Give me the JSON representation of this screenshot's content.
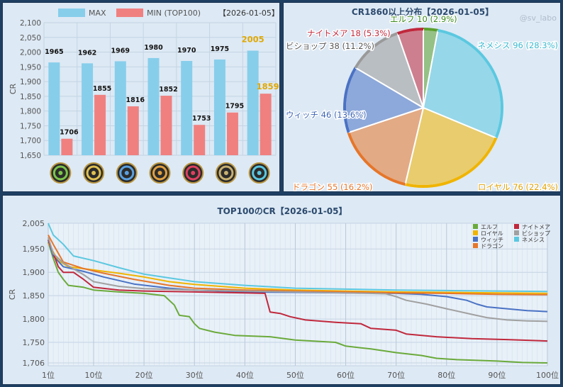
{
  "chart_data": [
    {
      "type": "bar",
      "title": "",
      "date_label": "【2026-01-05】",
      "ylabel": "CR",
      "ylim": [
        1650,
        2100
      ],
      "yticks": [
        "1,650",
        "1,700",
        "1,750",
        "1,800",
        "1,850",
        "1,900",
        "1,950",
        "2,000",
        "2,050",
        "2,100"
      ],
      "ytick_values": [
        1650,
        1700,
        1750,
        1800,
        1850,
        1900,
        1950,
        2000,
        2050,
        2100
      ],
      "categories": [
        "エルフ",
        "ロイヤル",
        "ウィッチ",
        "ドラゴン",
        "ナイトメア",
        "ビショップ",
        "ネメシス"
      ],
      "category_icons": [
        "leaf-icon",
        "crown-icon",
        "magic-circle-icon",
        "dragon-icon",
        "nightmare-icon",
        "bishop-icon",
        "nemesis-icon"
      ],
      "series": [
        {
          "name": "MAX",
          "color": "#87ceeb",
          "values": [
            1965,
            1962,
            1969,
            1980,
            1970,
            1975,
            2005
          ],
          "labels": [
            "1965",
            "1962",
            "1969",
            "1980",
            "1970",
            "1975",
            "2005"
          ]
        },
        {
          "name": "MIN (TOP100)",
          "color": "#f08080",
          "values": [
            1706,
            1855,
            1816,
            1852,
            1753,
            1795,
            1859
          ],
          "labels": [
            "1706",
            "1855",
            "1816",
            "1852",
            "1753",
            "1795",
            "1859"
          ]
        }
      ],
      "highlight_color": "#e0a800",
      "legend": "top"
    },
    {
      "type": "pie",
      "title": "CR1860以上分布【2026-01-05】",
      "watermark": "@sv_labo",
      "slices": [
        {
          "label": "エルフ 10 (2.9%)",
          "value": 10,
          "color": "#5aa02c",
          "label_color": "#3a8a1c"
        },
        {
          "label": "ネメシス 96 (28.3%)",
          "value": 96,
          "color": "#5bc8e0",
          "label_color": "#39b8d0"
        },
        {
          "label": "ロイヤル 76 (22.4%)",
          "value": 76,
          "color": "#f0b400",
          "label_color": "#e0a000"
        },
        {
          "label": "ドラゴン 55 (16.2%)",
          "value": 55,
          "color": "#e6762a",
          "label_color": "#e6762a"
        },
        {
          "label": "ウィッチ 46 (13.6%)",
          "value": 46,
          "color": "#4a72c4",
          "label_color": "#3c64b4"
        },
        {
          "label": "ビショップ 38 (11.2%)",
          "value": 38,
          "color": "#9a9a9a",
          "label_color": "#555555"
        },
        {
          "label": "ナイトメア 18 (5.3%)",
          "value": 18,
          "color": "#c0283c",
          "label_color": "#c0283c"
        }
      ]
    },
    {
      "type": "line",
      "title": "TOP100のCR【2026-01-05】",
      "ylabel": "CR",
      "ylim": [
        1700,
        2005
      ],
      "yticks": [
        "1,706",
        "1,750",
        "1,800",
        "1,850",
        "1,900",
        "1,950",
        "2,005"
      ],
      "ytick_values": [
        1706,
        1750,
        1800,
        1850,
        1900,
        1950,
        2005
      ],
      "xlim": [
        1,
        100
      ],
      "xticks": [
        "1位",
        "10位",
        "20位",
        "30位",
        "40位",
        "50位",
        "60位",
        "70位",
        "80位",
        "90位",
        "100位"
      ],
      "xtick_values": [
        1,
        10,
        20,
        30,
        40,
        50,
        60,
        70,
        80,
        90,
        100
      ],
      "legend": "top-right",
      "series": [
        {
          "name": "エルフ",
          "color": "#6aaa3a",
          "points": [
            [
              1,
              1965
            ],
            [
              2,
              1930
            ],
            [
              3,
              1900
            ],
            [
              4,
              1885
            ],
            [
              5,
              1872
            ],
            [
              8,
              1868
            ],
            [
              10,
              1862
            ],
            [
              15,
              1858
            ],
            [
              20,
              1855
            ],
            [
              24,
              1850
            ],
            [
              26,
              1830
            ],
            [
              27,
              1808
            ],
            [
              29,
              1805
            ],
            [
              30,
              1790
            ],
            [
              31,
              1780
            ],
            [
              34,
              1772
            ],
            [
              38,
              1765
            ],
            [
              45,
              1762
            ],
            [
              50,
              1755
            ],
            [
              58,
              1750
            ],
            [
              60,
              1742
            ],
            [
              65,
              1736
            ],
            [
              70,
              1728
            ],
            [
              75,
              1722
            ],
            [
              78,
              1716
            ],
            [
              82,
              1713
            ],
            [
              90,
              1710
            ],
            [
              95,
              1707
            ],
            [
              100,
              1706
            ]
          ]
        },
        {
          "name": "ロイヤル",
          "color": "#f0b400",
          "points": [
            [
              1,
              1962
            ],
            [
              3,
              1925
            ],
            [
              5,
              1912
            ],
            [
              10,
              1905
            ],
            [
              15,
              1898
            ],
            [
              20,
              1890
            ],
            [
              25,
              1880
            ],
            [
              30,
              1874
            ],
            [
              40,
              1866
            ],
            [
              50,
              1862
            ],
            [
              60,
              1860
            ],
            [
              70,
              1858
            ],
            [
              80,
              1857
            ],
            [
              90,
              1856
            ],
            [
              100,
              1855
            ]
          ]
        },
        {
          "name": "ウィッチ",
          "color": "#4a72c4",
          "points": [
            [
              1,
              1969
            ],
            [
              2,
              1935
            ],
            [
              4,
              1912
            ],
            [
              8,
              1902
            ],
            [
              12,
              1890
            ],
            [
              18,
              1875
            ],
            [
              25,
              1866
            ],
            [
              30,
              1862
            ],
            [
              40,
              1858
            ],
            [
              50,
              1857
            ],
            [
              60,
              1856
            ],
            [
              70,
              1855
            ],
            [
              75,
              1853
            ],
            [
              80,
              1848
            ],
            [
              84,
              1840
            ],
            [
              86,
              1832
            ],
            [
              88,
              1826
            ],
            [
              92,
              1822
            ],
            [
              96,
              1818
            ],
            [
              100,
              1816
            ]
          ]
        },
        {
          "name": "ドラゴン",
          "color": "#e6762a",
          "points": [
            [
              1,
              1980
            ],
            [
              2,
              1960
            ],
            [
              4,
              1922
            ],
            [
              8,
              1908
            ],
            [
              12,
              1898
            ],
            [
              18,
              1885
            ],
            [
              25,
              1872
            ],
            [
              30,
              1866
            ],
            [
              40,
              1862
            ],
            [
              50,
              1860
            ],
            [
              60,
              1858
            ],
            [
              70,
              1856
            ],
            [
              80,
              1855
            ],
            [
              90,
              1853
            ],
            [
              100,
              1852
            ]
          ]
        },
        {
          "name": "ナイトメア",
          "color": "#c0283c",
          "points": [
            [
              1,
              1970
            ],
            [
              3,
              1912
            ],
            [
              4,
              1900
            ],
            [
              6,
              1900
            ],
            [
              8,
              1885
            ],
            [
              10,
              1868
            ],
            [
              15,
              1862
            ],
            [
              20,
              1860
            ],
            [
              30,
              1858
            ],
            [
              40,
              1856
            ],
            [
              44,
              1855
            ],
            [
              45,
              1815
            ],
            [
              47,
              1812
            ],
            [
              49,
              1805
            ],
            [
              52,
              1798
            ],
            [
              58,
              1793
            ],
            [
              63,
              1790
            ],
            [
              65,
              1780
            ],
            [
              70,
              1776
            ],
            [
              72,
              1768
            ],
            [
              78,
              1762
            ],
            [
              85,
              1758
            ],
            [
              92,
              1756
            ],
            [
              100,
              1753
            ]
          ]
        },
        {
          "name": "ビショップ",
          "color": "#a0a0a0",
          "points": [
            [
              1,
              1975
            ],
            [
              2,
              1940
            ],
            [
              4,
              1920
            ],
            [
              8,
              1895
            ],
            [
              10,
              1880
            ],
            [
              15,
              1870
            ],
            [
              20,
              1865
            ],
            [
              30,
              1862
            ],
            [
              40,
              1860
            ],
            [
              50,
              1858
            ],
            [
              60,
              1856
            ],
            [
              68,
              1854
            ],
            [
              70,
              1848
            ],
            [
              72,
              1840
            ],
            [
              76,
              1832
            ],
            [
              80,
              1822
            ],
            [
              85,
              1810
            ],
            [
              88,
              1803
            ],
            [
              92,
              1798
            ],
            [
              96,
              1796
            ],
            [
              100,
              1795
            ]
          ]
        },
        {
          "name": "ネメシス",
          "color": "#5bc8e0",
          "points": [
            [
              1,
              2005
            ],
            [
              2,
              1980
            ],
            [
              4,
              1960
            ],
            [
              6,
              1935
            ],
            [
              10,
              1925
            ],
            [
              15,
              1910
            ],
            [
              20,
              1896
            ],
            [
              25,
              1888
            ],
            [
              30,
              1880
            ],
            [
              35,
              1876
            ],
            [
              40,
              1872
            ],
            [
              50,
              1866
            ],
            [
              60,
              1864
            ],
            [
              70,
              1862
            ],
            [
              80,
              1861
            ],
            [
              90,
              1860
            ],
            [
              100,
              1859
            ]
          ]
        }
      ]
    }
  ]
}
